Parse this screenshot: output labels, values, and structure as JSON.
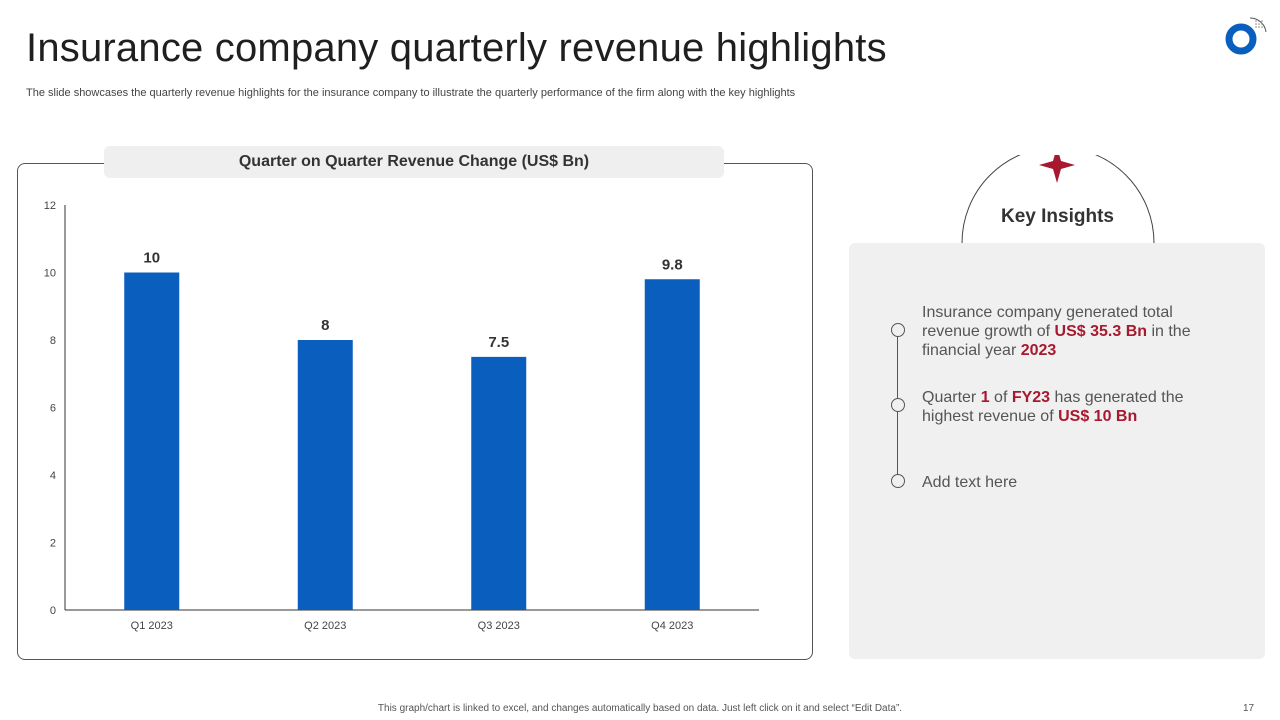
{
  "slide": {
    "title": "Insurance company quarterly revenue highlights",
    "subtitle": "The slide showcases the quarterly revenue highlights for the insurance company to illustrate the quarterly performance of the firm along with the key highlights",
    "footer_note": "This graph/chart is linked to excel, and changes automatically based on data. Just left click on it and select “Edit Data”.",
    "page_number": "17"
  },
  "colors": {
    "bar": "#0a5fbe",
    "accent_red": "#a6192e",
    "logo_blue": "#0a5fbe"
  },
  "chart_data": {
    "type": "bar",
    "title": "Quarter on Quarter Revenue Change (US$ Bn)",
    "categories": [
      "Q1 2023",
      "Q2 2023",
      "Q3 2023",
      "Q4 2023"
    ],
    "values": [
      10,
      8,
      7.5,
      9.8
    ],
    "value_labels": [
      "10",
      "8",
      "7.5",
      "9.8"
    ],
    "ylim": [
      0,
      12
    ],
    "yticks": [
      0,
      2,
      4,
      6,
      8,
      10,
      12
    ],
    "xlabel": "",
    "ylabel": "",
    "grid": false
  },
  "insights": {
    "title": "Key Insights",
    "items": [
      {
        "parts": [
          {
            "text": "Insurance company generated total revenue growth of ",
            "hl": false
          },
          {
            "text": "US$ 35.3 Bn",
            "hl": true
          },
          {
            "text": " in the financial year ",
            "hl": false
          },
          {
            "text": "2023",
            "hl": true
          }
        ]
      },
      {
        "parts": [
          {
            "text": "Quarter ",
            "hl": false
          },
          {
            "text": "1",
            "hl": true
          },
          {
            "text": " of ",
            "hl": false
          },
          {
            "text": "FY23",
            "hl": true
          },
          {
            "text": " has generated the highest revenue of ",
            "hl": false
          },
          {
            "text": "US$ 10 Bn",
            "hl": true
          }
        ]
      },
      {
        "parts": [
          {
            "text": "Add text here",
            "hl": false
          }
        ]
      }
    ]
  }
}
